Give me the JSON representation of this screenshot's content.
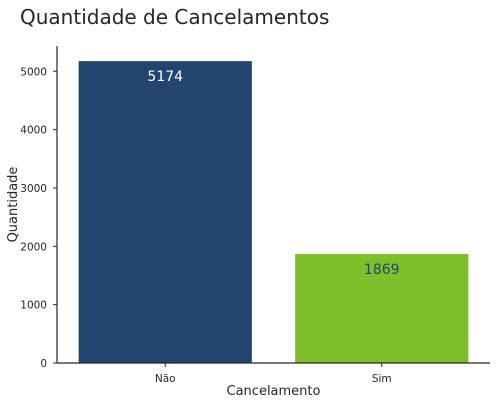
{
  "chart_data": {
    "type": "bar",
    "title": "Quantidade de Cancelamentos",
    "xlabel": "Cancelamento",
    "ylabel": "Quantidade",
    "categories": [
      "Não",
      "Sim"
    ],
    "values": [
      5174,
      1869
    ],
    "data_labels": [
      "5174",
      "1869"
    ],
    "bar_colors": [
      "#23446f",
      "#7fbf2a"
    ],
    "label_colors": [
      "#ffffff",
      "#23446f"
    ],
    "ylim": [
      0,
      5433
    ],
    "yticks": [
      0,
      1000,
      2000,
      3000,
      4000,
      5000
    ],
    "ytick_labels": [
      "0",
      "1000",
      "2000",
      "3000",
      "4000",
      "5000"
    ],
    "grid": false,
    "legend": "none"
  }
}
